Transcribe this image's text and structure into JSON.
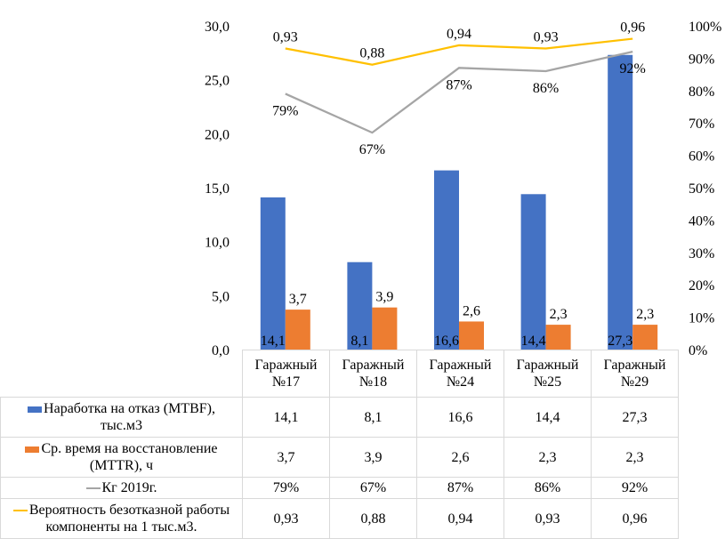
{
  "chart_data": {
    "type": "bar+line",
    "categories": [
      "Гаражный №17",
      "Гаражный №18",
      "Гаражный №24",
      "Гаражный №25",
      "Гаражный №29"
    ],
    "category_lines": [
      [
        "Гаражный",
        "№17"
      ],
      [
        "Гаражный",
        "№18"
      ],
      [
        "Гаражный",
        "№24"
      ],
      [
        "Гаражный",
        "№25"
      ],
      [
        "Гаражный",
        "№29"
      ]
    ],
    "left_axis": {
      "ylim": [
        0,
        30
      ],
      "ticks": [
        "0,0",
        "5,0",
        "10,0",
        "15,0",
        "20,0",
        "25,0",
        "30,0"
      ]
    },
    "right_axis": {
      "ylim": [
        0,
        1
      ],
      "ticks": [
        "0%",
        "10%",
        "20%",
        "30%",
        "40%",
        "50%",
        "60%",
        "70%",
        "80%",
        "90%",
        "100%"
      ]
    },
    "grid": false,
    "legend": "data-table",
    "series": [
      {
        "name": "Наработка на отказ (MTBF), тыс.м3",
        "name_lines": [
          "Наработка на отказ (MTBF),",
          "тыс.м3"
        ],
        "kind": "bar",
        "axis": "left",
        "color": "#4472c4",
        "values": [
          14.1,
          8.1,
          16.6,
          14.4,
          27.3
        ],
        "labels": [
          "14,1",
          "8,1",
          "16,6",
          "14,4",
          "27,3"
        ]
      },
      {
        "name": "Ср. время на восстановление (MTTR), ч",
        "name_lines": [
          "Ср. время на восстановление",
          "(MTTR), ч"
        ],
        "kind": "bar",
        "axis": "left",
        "color": "#ed7d31",
        "values": [
          3.7,
          3.9,
          2.6,
          2.3,
          2.3
        ],
        "labels": [
          "3,7",
          "3,9",
          "2,6",
          "2,3",
          "2,3"
        ]
      },
      {
        "name": "Кг 2019г.",
        "name_lines": [
          "Кг 2019г."
        ],
        "kind": "line",
        "axis": "right",
        "color": "#a5a5a5",
        "values": [
          0.79,
          0.67,
          0.87,
          0.86,
          0.92
        ],
        "labels": [
          "79%",
          "67%",
          "87%",
          "86%",
          "92%"
        ]
      },
      {
        "name": "Вероятность безотказной работы компоненты на 1 тыс.м3.",
        "name_lines": [
          "Вероятность безотказной работы",
          "компоненты на 1 тыс.м3."
        ],
        "kind": "line",
        "axis": "right",
        "color": "#ffc000",
        "values": [
          0.93,
          0.88,
          0.94,
          0.93,
          0.96
        ],
        "labels": [
          "0,93",
          "0,88",
          "0,94",
          "0,93",
          "0,96"
        ]
      }
    ]
  }
}
